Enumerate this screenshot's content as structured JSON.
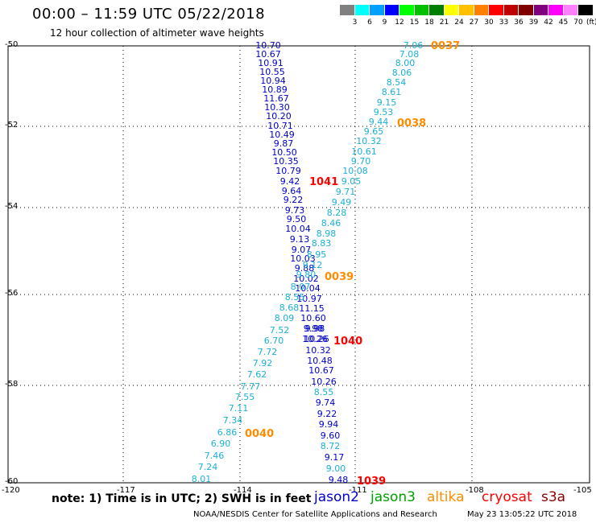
{
  "header": {
    "title": "00:00 – 11:59 UTC 05/22/2018",
    "subtitle": "12 hour collection of altimeter wave heights"
  },
  "color_scale": {
    "unit": "(ft)",
    "bins": [
      {
        "label": "3",
        "color": "#808080"
      },
      {
        "label": "6",
        "color": "#00ffff"
      },
      {
        "label": "9",
        "color": "#00a0ff"
      },
      {
        "label": "12",
        "color": "#0000ff"
      },
      {
        "label": "15",
        "color": "#00ff00"
      },
      {
        "label": "18",
        "color": "#00c000"
      },
      {
        "label": "21",
        "color": "#008000"
      },
      {
        "label": "24",
        "color": "#ffff00"
      },
      {
        "label": "27",
        "color": "#ffc000"
      },
      {
        "label": "30",
        "color": "#ff8000"
      },
      {
        "label": "33",
        "color": "#ff0000"
      },
      {
        "label": "36",
        "color": "#c00000"
      },
      {
        "label": "39",
        "color": "#800000"
      },
      {
        "label": "42",
        "color": "#800080"
      },
      {
        "label": "45",
        "color": "#ff00ff"
      },
      {
        "label": "70",
        "color": "#ff80ff"
      },
      {
        "label": "",
        "color": "#000000"
      }
    ]
  },
  "map": {
    "lat_ticks": [
      "-50",
      "-52",
      "-54",
      "-56",
      "-58",
      "-60"
    ],
    "lon_ticks": [
      "-120",
      "-117",
      "-114",
      "-111",
      "-108",
      "-105"
    ],
    "lat_range": [
      -60,
      -50
    ],
    "lon_range": [
      -120,
      -105
    ]
  },
  "tracks": [
    {
      "name": "track-jason2-1041",
      "color": "#0000cc",
      "labels": [
        "10.70",
        "10.67",
        "10.91",
        "10.55",
        "10.94",
        "10.89",
        "11.67",
        "10.30",
        "10.20",
        "10.71",
        "10.49",
        "9.87",
        "10.50",
        "10.35",
        "10.79",
        "9.42",
        "9.64",
        "9.22",
        "9.73",
        "9.50",
        "10.04",
        "9.13",
        "9.07",
        "10.03",
        "9.88",
        "10.02",
        "10.04",
        "10.97",
        "11.15",
        "10.60",
        "9.98",
        "10.26",
        "10.32",
        "10.48",
        "10.67",
        "10.26",
        "9.74",
        "9.22",
        "9.94",
        "9.60",
        "9.17",
        "9.48"
      ]
    },
    {
      "name": "track-altika-0037",
      "color": "#1ab0d8",
      "labels": [
        "7.06",
        "7.08",
        "8.00",
        "8.06",
        "8.54",
        "8.61",
        "9.15",
        "9.53",
        "9.44",
        "9.65",
        "10.32",
        "10.61",
        "9.70",
        "10.08",
        "9.05",
        "9.71",
        "9.49",
        "8.28",
        "8.46",
        "8.98",
        "8.83",
        "8.95",
        "9.12",
        "9.80",
        "8.07",
        "8.55",
        "8.68",
        "8.09",
        "7.52",
        "6.70",
        "7.72",
        "7.92",
        "7.62",
        "7.77",
        "7.55",
        "7.11",
        "7.34",
        "6.86",
        "6.90",
        "7.46",
        "7.24",
        "8.01"
      ]
    },
    {
      "name": "track-jason2-1040",
      "color": "#0000cc",
      "labels": [
        "10.26",
        "9.98"
      ]
    },
    {
      "name": "track-altika-0039",
      "color": "#1ab0d8",
      "labels": [
        "8.55",
        "8.72",
        "9.00"
      ]
    }
  ],
  "pass_labels": [
    {
      "text": "0037",
      "color": "#ff8c00"
    },
    {
      "text": "0038",
      "color": "#ff8c00"
    },
    {
      "text": "1041",
      "color": "#ff0000"
    },
    {
      "text": "0039",
      "color": "#ff8c00"
    },
    {
      "text": "1040",
      "color": "#ff0000"
    },
    {
      "text": "0040",
      "color": "#ff8c00"
    },
    {
      "text": "1039",
      "color": "#ff0000"
    }
  ],
  "footer": {
    "note": "note: 1) Time is in UTC; 2) SWH is in feet",
    "satellites": [
      {
        "name": "jason2",
        "color": "#0000cc"
      },
      {
        "name": "jason3",
        "color": "#00a000"
      },
      {
        "name": "altika",
        "color": "#ff8c00"
      },
      {
        "name": "cryosat",
        "color": "#ff0000"
      },
      {
        "name": "s3a",
        "color": "#8b0000"
      }
    ],
    "credit": "NOAA/NESDIS Center for Satellite Applications and Research",
    "timestamp": "May 23 13:05:22 UTC 2018"
  }
}
